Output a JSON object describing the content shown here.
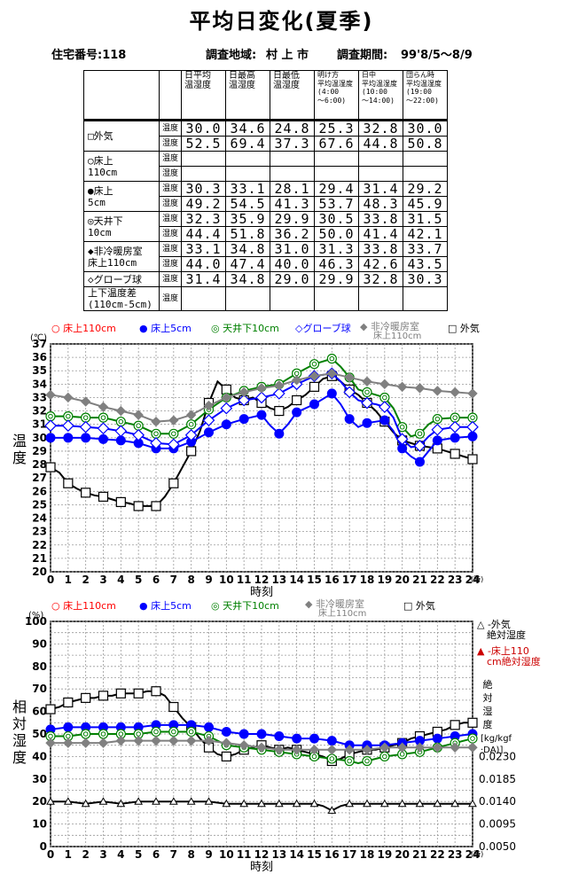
{
  "title": "平均日変化(夏季)",
  "header": {
    "house_label": "住宅番号:118",
    "area_label": "調査地域:",
    "area_value": "村 上 市",
    "period_label": "調査期間:",
    "period_value": "99'8/5～8/9"
  },
  "table": {
    "columns": [
      [
        "日平均",
        "温湿度"
      ],
      [
        "日最高",
        "温湿度"
      ],
      [
        "日最低",
        "温湿度"
      ],
      [
        "明け方",
        "平均温湿度",
        "(4:00",
        "～6:00)"
      ],
      [
        "日中",
        "平均温湿度",
        "(10:00",
        "～14:00)"
      ],
      [
        "団らん時",
        "平均温湿度",
        "(19:00",
        "～22:00)"
      ]
    ],
    "temp_label": "温度",
    "hum_label": "湿度",
    "rows": [
      {
        "label": [
          "□外気"
        ],
        "temp": [
          "30.0",
          "34.6",
          "24.8",
          "25.3",
          "32.8",
          "30.0"
        ],
        "hum": [
          "52.5",
          "69.4",
          "37.3",
          "67.6",
          "44.8",
          "50.8"
        ]
      },
      {
        "label": [
          "○床上",
          "110cm"
        ],
        "temp": [
          "",
          "",
          "",
          "",
          "",
          ""
        ],
        "hum": [
          "",
          "",
          "",
          "",
          "",
          ""
        ]
      },
      {
        "label": [
          "●床上",
          "5cm"
        ],
        "temp": [
          "30.3",
          "33.1",
          "28.1",
          "29.4",
          "31.4",
          "29.2"
        ],
        "hum": [
          "49.2",
          "54.5",
          "41.3",
          "53.7",
          "48.3",
          "45.9"
        ]
      },
      {
        "label": [
          "◎天井下",
          "10cm"
        ],
        "temp": [
          "32.3",
          "35.9",
          "29.9",
          "30.5",
          "33.8",
          "31.5"
        ],
        "hum": [
          "44.4",
          "51.8",
          "36.2",
          "50.0",
          "41.4",
          "42.1"
        ]
      },
      {
        "label": [
          "◆非冷暖房室",
          "床上110cm"
        ],
        "temp": [
          "33.1",
          "34.8",
          "31.0",
          "31.3",
          "33.8",
          "33.7"
        ],
        "hum": [
          "44.0",
          "47.4",
          "40.0",
          "46.3",
          "42.6",
          "43.5"
        ]
      },
      {
        "label": [
          "◇グローブ球"
        ],
        "temp": [
          "31.4",
          "34.8",
          "29.0",
          "29.9",
          "32.8",
          "30.3"
        ],
        "hum": null
      },
      {
        "label": [
          "上下温度差",
          "(110cm-5cm)"
        ],
        "temp": [
          "",
          "",
          "",
          "",
          "",
          ""
        ],
        "hum": null
      }
    ]
  },
  "chart_data": [
    {
      "type": "line",
      "title": "",
      "xlabel": "時刻",
      "ylabel": "温度",
      "y_unit": "(℃)",
      "x_unit": "(時)",
      "xlim": [
        0,
        24
      ],
      "ylim": [
        20,
        37
      ],
      "grid": true,
      "legend_position": "top",
      "x_ticks": [
        "0",
        "1",
        "2",
        "3",
        "4",
        "5",
        "6",
        "7",
        "8",
        "9",
        "10",
        "11",
        "12",
        "13",
        "14",
        "15",
        "16",
        "17",
        "18",
        "19",
        "20",
        "21",
        "22",
        "23",
        "24"
      ],
      "y_ticks": [
        "20",
        "21",
        "22",
        "23",
        "24",
        "25",
        "26",
        "27",
        "28",
        "29",
        "30",
        "31",
        "32",
        "33",
        "34",
        "35",
        "36",
        "37"
      ],
      "legend": [
        {
          "label": "○ 床上110cm",
          "color": "#ff0000"
        },
        {
          "label": "● 床上5cm",
          "color": "#0000ff"
        },
        {
          "label": "◎ 天井下10cm",
          "color": "#008000"
        },
        {
          "label": "◇グローブ球",
          "color": "#0000ff"
        },
        {
          "label": "◆ 非冷暖房室",
          "label2": "床上110cm",
          "color": "#808080"
        },
        {
          "label": "□ 外気",
          "color": "#000000"
        }
      ],
      "series": [
        {
          "name": "外気",
          "marker": "square",
          "color": "#000000",
          "x": [
            0,
            0.5,
            1,
            1.5,
            2,
            2.5,
            3,
            3.5,
            4,
            4.5,
            5,
            5.5,
            6,
            6.5,
            7,
            7.5,
            8,
            8.5,
            9,
            9.5,
            10,
            10.5,
            11,
            11.5,
            12,
            12.5,
            13,
            13.5,
            14,
            14.5,
            15,
            15.5,
            16,
            16.5,
            17,
            17.5,
            18,
            18.5,
            19,
            19.5,
            20,
            20.5,
            21,
            21.5,
            22,
            22.5,
            23,
            23.5,
            24
          ],
          "y": [
            27.8,
            27.4,
            26.6,
            26.2,
            25.9,
            25.7,
            25.6,
            25.4,
            25.2,
            25.1,
            24.9,
            24.9,
            24.9,
            25.6,
            26.6,
            27.8,
            29.0,
            30.5,
            32.6,
            34.2,
            33.6,
            33.0,
            32.8,
            33.0,
            32.6,
            32.2,
            32.0,
            32.3,
            32.8,
            33.2,
            33.8,
            34.4,
            34.6,
            34.2,
            33.6,
            33.2,
            32.6,
            32.0,
            31.2,
            30.4,
            29.8,
            29.6,
            29.4,
            29.3,
            29.2,
            29.0,
            28.8,
            28.6,
            28.4
          ]
        },
        {
          "name": "床上5cm",
          "marker": "filled-circle",
          "color": "#0000ff",
          "x": [
            0,
            1,
            2,
            3,
            4,
            5,
            6,
            7,
            8,
            9,
            10,
            11,
            12,
            12.5,
            13,
            13.5,
            14,
            15,
            16,
            16.5,
            17,
            17.5,
            18,
            19,
            19.5,
            20,
            20.5,
            21,
            21.5,
            22,
            23,
            24
          ],
          "y": [
            30.0,
            30.0,
            30.0,
            29.9,
            29.8,
            29.6,
            29.2,
            29.2,
            29.7,
            30.4,
            31.0,
            31.4,
            31.7,
            30.9,
            30.3,
            31.0,
            31.9,
            32.5,
            33.3,
            32.5,
            31.4,
            30.8,
            31.1,
            31.3,
            30.5,
            29.2,
            28.6,
            28.2,
            29.0,
            29.8,
            30.0,
            30.1
          ]
        },
        {
          "name": "天井下10cm",
          "marker": "double-circle",
          "color": "#008000",
          "x": [
            0,
            1,
            2,
            3,
            4,
            5,
            6,
            7,
            8,
            9,
            10,
            11,
            12,
            13,
            14,
            15,
            15.5,
            16,
            16.5,
            17,
            17.5,
            18,
            18.5,
            19,
            19.5,
            20,
            20.5,
            21,
            21.5,
            22,
            23,
            24
          ],
          "y": [
            31.6,
            31.6,
            31.5,
            31.5,
            31.2,
            30.9,
            30.3,
            30.3,
            31.0,
            32.1,
            33.0,
            33.5,
            33.8,
            34.0,
            34.8,
            35.5,
            35.7,
            35.9,
            35.3,
            34.5,
            33.6,
            33.4,
            33.2,
            33.0,
            32.2,
            30.8,
            30.1,
            30.3,
            31.0,
            31.4,
            31.5,
            31.5
          ]
        },
        {
          "name": "グローブ球",
          "marker": "diamond",
          "color": "#0000ff",
          "x": [
            0,
            1,
            2,
            3,
            4,
            5,
            6,
            7,
            8,
            9,
            10,
            11,
            12,
            13,
            14,
            15,
            16,
            16.5,
            17,
            17.5,
            18,
            18.5,
            19,
            19.5,
            20,
            20.5,
            21,
            21.5,
            22,
            23,
            24
          ],
          "y": [
            30.9,
            30.9,
            30.8,
            30.7,
            30.5,
            30.2,
            29.6,
            29.5,
            30.2,
            31.3,
            32.2,
            32.8,
            33.0,
            33.3,
            34.0,
            34.6,
            34.8,
            34.2,
            33.4,
            32.8,
            32.6,
            32.5,
            32.3,
            31.5,
            29.9,
            29.3,
            29.4,
            30.1,
            30.6,
            30.8,
            30.8
          ]
        },
        {
          "name": "非冷暖房室 床上110cm",
          "marker": "filled-diamond",
          "color": "#808080",
          "x": [
            0,
            1,
            2,
            3,
            4,
            5,
            6,
            7,
            8,
            9,
            10,
            11,
            12,
            13,
            14,
            15,
            16,
            17,
            18,
            19,
            20,
            21,
            22,
            23,
            24
          ],
          "y": [
            33.2,
            33.0,
            32.7,
            32.3,
            32.0,
            31.7,
            31.2,
            31.3,
            31.7,
            32.4,
            33.0,
            33.4,
            33.7,
            33.9,
            34.3,
            34.6,
            34.8,
            34.5,
            34.2,
            34.0,
            33.8,
            33.7,
            33.5,
            33.4,
            33.3
          ]
        }
      ]
    },
    {
      "type": "line",
      "title": "",
      "xlabel": "時刻",
      "ylabel": "相対湿度",
      "y_unit": "(%)",
      "x_unit": "(時)",
      "xlim": [
        0,
        24
      ],
      "ylim": [
        0,
        100
      ],
      "grid": true,
      "legend_position": "top",
      "x_ticks": [
        "0",
        "1",
        "2",
        "3",
        "4",
        "5",
        "6",
        "7",
        "8",
        "9",
        "10",
        "11",
        "12",
        "13",
        "14",
        "15",
        "16",
        "17",
        "18",
        "19",
        "20",
        "21",
        "22",
        "23",
        "24"
      ],
      "y_ticks": [
        "0",
        "10",
        "20",
        "30",
        "40",
        "50",
        "60",
        "70",
        "80",
        "90",
        "100"
      ],
      "secondary_axis": {
        "label": [
          "絶",
          "対",
          "湿",
          "度"
        ],
        "unit": [
          "[kg/kgf",
          "·DA)]"
        ],
        "ticks": [
          {
            "label": "0.0050",
            "y": 0
          },
          {
            "label": "0.0095",
            "y": 10
          },
          {
            "label": "0.0140",
            "y": 20
          },
          {
            "label": "0.0185",
            "y": 30
          },
          {
            "label": "0.0230",
            "y": 40
          }
        ]
      },
      "legend": [
        {
          "label": "○ 床上110cm",
          "color": "#ff0000"
        },
        {
          "label": "● 床上5cm",
          "color": "#0000ff"
        },
        {
          "label": "◎ 天井下10cm",
          "color": "#008000"
        },
        {
          "label": "◆ 非冷暖房室",
          "label2": "床上110cm",
          "color": "#808080"
        },
        {
          "label": "□ 外気",
          "color": "#000000"
        }
      ],
      "right_legend": [
        {
          "label": [
            "△ -外気",
            "　絶対湿度"
          ],
          "color": "#000000"
        },
        {
          "label": [
            "▲ -床上110",
            "　cm絶対湿度"
          ],
          "color": "#cc0000"
        }
      ],
      "series": [
        {
          "name": "外気",
          "marker": "square",
          "color": "#000000",
          "x": [
            0,
            0.5,
            1,
            1.5,
            2,
            2.5,
            3,
            3.5,
            4,
            4.5,
            5,
            5.5,
            6,
            6.5,
            7,
            7.5,
            8,
            8.5,
            9,
            9.5,
            10,
            10.5,
            11,
            11.5,
            12,
            12.5,
            13,
            13.5,
            14,
            14.5,
            15,
            15.5,
            16,
            16.5,
            17,
            17.5,
            18,
            18.5,
            19,
            19.5,
            20,
            20.5,
            21,
            21.5,
            22,
            22.5,
            23,
            23.5,
            24
          ],
          "y": [
            61,
            62,
            64,
            65,
            66,
            66,
            67,
            67,
            68,
            68,
            68,
            69,
            69,
            67,
            62,
            57,
            53,
            48,
            44,
            41,
            40,
            41,
            43,
            44,
            45,
            44,
            43,
            44,
            43,
            42,
            41,
            40,
            38,
            39,
            41,
            42,
            43,
            43,
            44,
            45,
            46,
            48,
            49,
            50,
            51,
            52,
            54,
            55,
            55
          ]
        },
        {
          "name": "床上5cm",
          "marker": "filled-circle",
          "color": "#0000ff",
          "x": [
            0,
            1,
            2,
            3,
            4,
            5,
            6,
            7,
            8,
            9,
            10,
            11,
            12,
            13,
            14,
            15,
            16,
            17,
            18,
            19,
            20,
            21,
            22,
            23,
            24
          ],
          "y": [
            52,
            53,
            53,
            53,
            53,
            53,
            54,
            54,
            54,
            53,
            51,
            50,
            50,
            49,
            48,
            48,
            47,
            45,
            45,
            45,
            46,
            47,
            48,
            49,
            50
          ]
        },
        {
          "name": "天井下10cm",
          "marker": "double-circle",
          "color": "#008000",
          "x": [
            0,
            1,
            2,
            3,
            4,
            5,
            6,
            7,
            8,
            9,
            10,
            11,
            12,
            13,
            14,
            15,
            16,
            17,
            17.5,
            18,
            19,
            20,
            21,
            22,
            23,
            24
          ],
          "y": [
            49,
            49,
            50,
            50,
            50,
            50,
            51,
            51,
            51,
            49,
            45,
            44,
            43,
            42,
            41,
            40,
            39,
            38,
            37,
            38,
            40,
            41,
            42,
            44,
            46,
            48
          ]
        },
        {
          "name": "非冷暖房室 床上110cm",
          "marker": "filled-diamond",
          "color": "#808080",
          "x": [
            0,
            1,
            2,
            3,
            4,
            5,
            6,
            7,
            8,
            9,
            10,
            11,
            12,
            13,
            14,
            15,
            16,
            17,
            18,
            19,
            20,
            21,
            22,
            23,
            24
          ],
          "y": [
            46,
            46,
            46,
            46,
            47,
            47,
            47,
            47,
            47,
            47,
            46,
            45,
            44,
            43,
            43,
            43,
            43,
            43,
            43,
            44,
            44,
            44,
            44,
            44,
            44
          ]
        },
        {
          "name": "外気 絶対湿度",
          "marker": "triangle",
          "color": "#000000",
          "x": [
            0,
            1,
            2,
            3,
            4,
            5,
            6,
            7,
            8,
            9,
            10,
            11,
            12,
            13,
            14,
            15,
            15.5,
            16,
            16.5,
            17,
            18,
            19,
            20,
            21,
            22,
            23,
            24
          ],
          "y": [
            20,
            20,
            19,
            20,
            19,
            20,
            20,
            20,
            20,
            20,
            19,
            19,
            19,
            19,
            19,
            19,
            18,
            16,
            18,
            19,
            19,
            19,
            19,
            19,
            19,
            19,
            19
          ]
        }
      ]
    }
  ]
}
